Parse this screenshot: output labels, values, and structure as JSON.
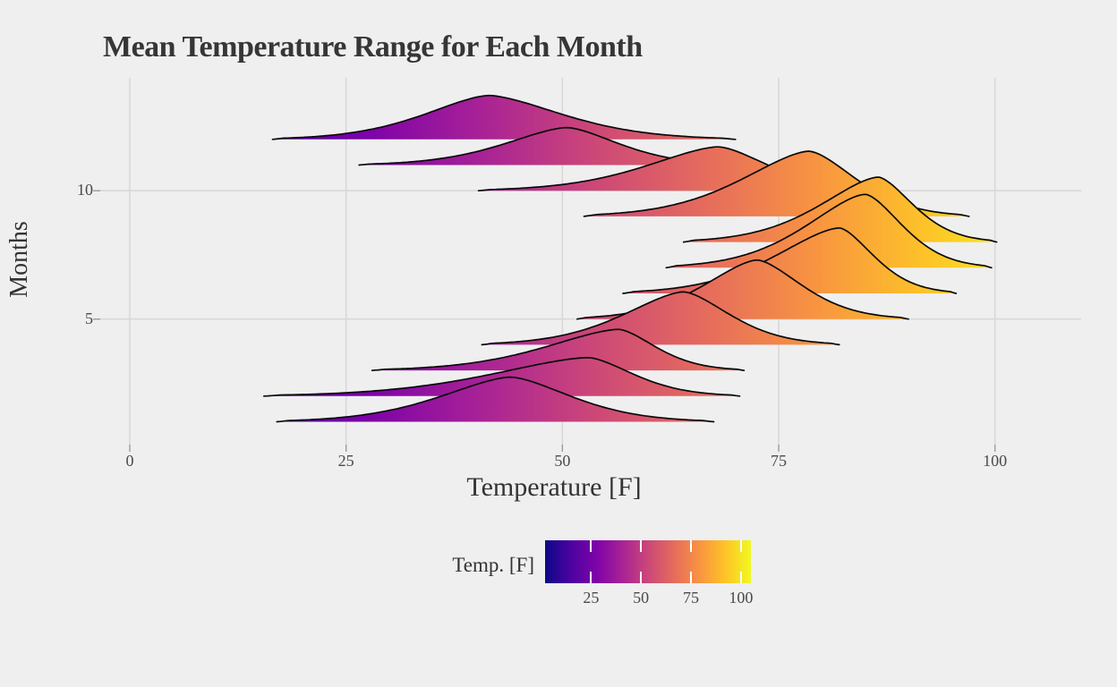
{
  "figure": {
    "title": "Mean Temperature Range for Each Month",
    "x_label": "Temperature [F]",
    "y_label": "Months",
    "colors": {
      "background": "#efeff0",
      "gridline": "#d8d8d8",
      "axis_tick": "#9a9a9a",
      "title_text": "#363636",
      "axis_label_text": "#333333",
      "tick_label_text": "#4a4a4a",
      "ridge_outline": "#0a0a0a"
    }
  },
  "legend": {
    "title": "Temp. [F]",
    "tick_values": [
      25,
      50,
      75,
      100
    ],
    "tick_labels": [
      "25",
      "50",
      "75",
      "100"
    ],
    "domain": [
      2,
      105
    ]
  },
  "chart_data": {
    "type": "ridgeline",
    "title": "Mean Temperature Range for Each Month",
    "xlabel": "Temperature [F]",
    "ylabel": "Months",
    "x_ticks": [
      0,
      25,
      50,
      75,
      100
    ],
    "x_tick_labels": [
      "0",
      "25",
      "50",
      "75",
      "100"
    ],
    "y_ticks": [
      5,
      10
    ],
    "y_tick_labels": [
      "5",
      "10"
    ],
    "xlim": [
      -3.4,
      110
    ],
    "ylim": [
      0.1,
      14.4
    ],
    "grid": true,
    "legend_position": "bottom",
    "colormap": "plasma",
    "color_domain_f": [
      2,
      105
    ],
    "plasma_stops": [
      [
        0.0,
        "#0d0887"
      ],
      [
        0.125,
        "#4c02a1"
      ],
      [
        0.25,
        "#7e03a8"
      ],
      [
        0.375,
        "#a82296"
      ],
      [
        0.5,
        "#cc4778"
      ],
      [
        0.625,
        "#e56b5d"
      ],
      [
        0.75,
        "#f89441"
      ],
      [
        0.875,
        "#fdc328"
      ],
      [
        1.0,
        "#f0f921"
      ]
    ],
    "months": [
      {
        "month": 1,
        "min_f": 17.0,
        "peak_f": 44.0,
        "max_f": 67.5,
        "rel_height": 1.74
      },
      {
        "month": 2,
        "min_f": 15.5,
        "peak_f": 53.0,
        "max_f": 70.5,
        "rel_height": 1.5
      },
      {
        "month": 3,
        "min_f": 28.0,
        "peak_f": 56.5,
        "max_f": 71.0,
        "rel_height": 1.6
      },
      {
        "month": 4,
        "min_f": 40.7,
        "peak_f": 64.0,
        "max_f": 82.0,
        "rel_height": 2.06
      },
      {
        "month": 5,
        "min_f": 51.7,
        "peak_f": 72.5,
        "max_f": 90.0,
        "rel_height": 2.3
      },
      {
        "month": 6,
        "min_f": 57.0,
        "peak_f": 82.0,
        "max_f": 95.5,
        "rel_height": 2.55
      },
      {
        "month": 7,
        "min_f": 62.0,
        "peak_f": 85.0,
        "max_f": 99.6,
        "rel_height": 2.86
      },
      {
        "month": 8,
        "min_f": 64.0,
        "peak_f": 86.5,
        "max_f": 100.2,
        "rel_height": 2.53
      },
      {
        "month": 9,
        "min_f": 52.5,
        "peak_f": 78.5,
        "max_f": 97.0,
        "rel_height": 2.54
      },
      {
        "month": 10,
        "min_f": 40.3,
        "peak_f": 68.0,
        "max_f": 88.0,
        "rel_height": 1.71
      },
      {
        "month": 11,
        "min_f": 26.5,
        "peak_f": 50.5,
        "max_f": 70.8,
        "rel_height": 1.46
      },
      {
        "month": 12,
        "min_f": 16.5,
        "peak_f": 41.5,
        "max_f": 70.0,
        "rel_height": 1.71
      }
    ]
  }
}
